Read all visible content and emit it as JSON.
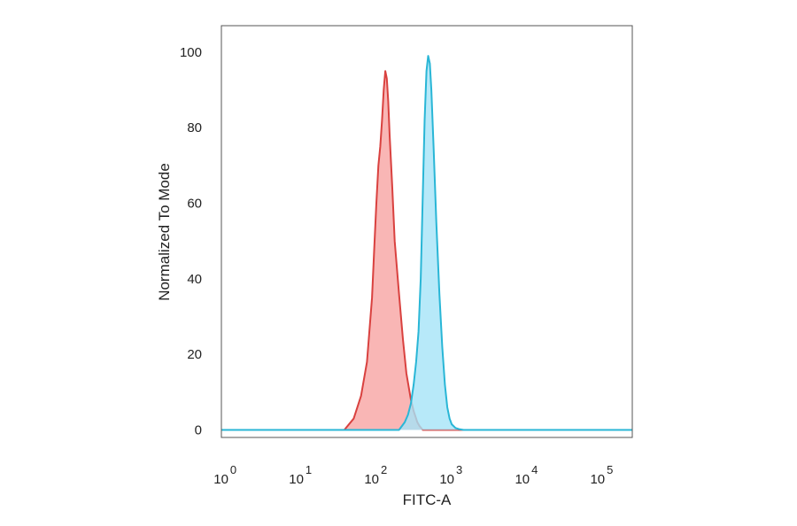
{
  "chart_data": {
    "type": "area",
    "title": "",
    "xlabel": "FITC-A",
    "ylabel": "Normalized To Mode",
    "x_scale": "log",
    "xlim": [
      0.7,
      200000
    ],
    "ylim": [
      -2,
      107
    ],
    "grid": false,
    "legend": "none",
    "y_ticks": [
      0,
      20,
      40,
      60,
      80,
      100
    ],
    "x_ticks": [
      {
        "base": "10",
        "exp": "0",
        "value": 1
      },
      {
        "base": "10",
        "exp": "1",
        "value": 10
      },
      {
        "base": "10",
        "exp": "2",
        "value": 100
      },
      {
        "base": "10",
        "exp": "3",
        "value": 1000
      },
      {
        "base": "10",
        "exp": "4",
        "value": 10000
      },
      {
        "base": "10",
        "exp": "5",
        "value": 100000
      }
    ],
    "series": [
      {
        "color": "#d9413f",
        "fill": "#f7a4a3",
        "x": [
          0.7,
          30,
          40,
          50,
          60,
          70,
          75,
          80,
          85,
          90,
          95,
          100,
          105,
          110,
          115,
          120,
          130,
          140,
          160,
          180,
          200,
          230,
          250,
          280,
          300,
          330,
          200000
        ],
        "y": [
          0,
          0,
          3,
          9,
          18,
          35,
          48,
          60,
          70,
          75,
          82,
          90,
          95,
          93,
          87,
          78,
          64,
          50,
          36,
          24,
          15,
          8,
          5,
          2,
          1,
          0,
          0
        ]
      },
      {
        "color": "#29b6d6",
        "fill": "#a5e3f7",
        "x": [
          0.7,
          160,
          190,
          210,
          230,
          250,
          270,
          290,
          310,
          330,
          350,
          370,
          390,
          410,
          430,
          460,
          500,
          550,
          600,
          650,
          700,
          750,
          800,
          900,
          1000,
          1150,
          200000
        ],
        "y": [
          0,
          0,
          2,
          4,
          7,
          12,
          18,
          26,
          40,
          62,
          82,
          95,
          99,
          97,
          90,
          75,
          55,
          36,
          22,
          12,
          6,
          3,
          1.5,
          0.5,
          0.2,
          0,
          0
        ]
      }
    ]
  }
}
